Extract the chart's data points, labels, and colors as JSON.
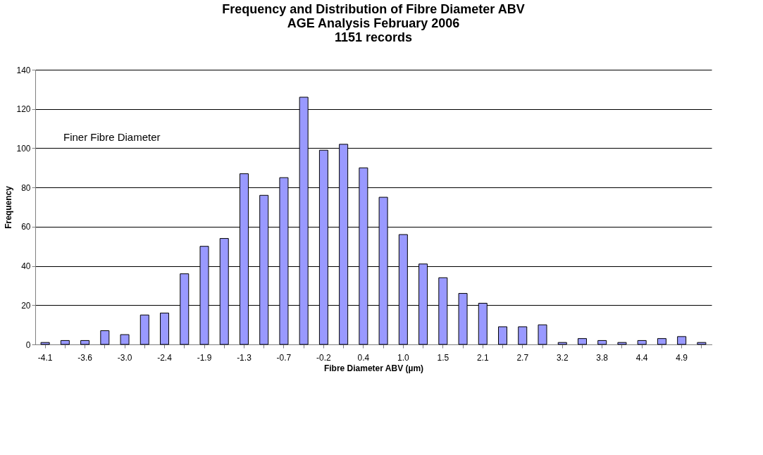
{
  "chart_data": {
    "type": "bar",
    "title": "Frequency and Distribution of Fibre Diameter ABV\nAGE Analysis February 2006\n1151 records",
    "xlabel": "Fibre Diameter ABV (µm)",
    "ylabel": "Frequency",
    "categories": [
      "-4.1",
      null,
      "-3.6",
      null,
      "-3.0",
      null,
      "-2.4",
      null,
      "-1.9",
      null,
      "-1.3",
      null,
      "-0.7",
      null,
      "-0.2",
      null,
      "0.4",
      null,
      "1.0",
      null,
      "1.5",
      null,
      "2.1",
      null,
      "2.7",
      null,
      "3.2",
      null,
      "3.8",
      null,
      "4.4",
      null,
      "4.9",
      null
    ],
    "values": [
      1,
      2,
      2,
      7,
      5,
      15,
      16,
      36,
      50,
      54,
      87,
      76,
      85,
      126,
      99,
      102,
      90,
      75,
      56,
      41,
      34,
      26,
      21,
      9,
      9,
      10,
      1,
      3,
      2,
      1,
      2,
      3,
      4,
      1
    ],
    "color": "#9999ff",
    "ylim": [
      0,
      140
    ],
    "yticks": [
      0,
      20,
      40,
      60,
      80,
      100,
      120,
      140
    ],
    "grid": "y",
    "annotations": [
      "Finer Fibre Diameter"
    ]
  }
}
